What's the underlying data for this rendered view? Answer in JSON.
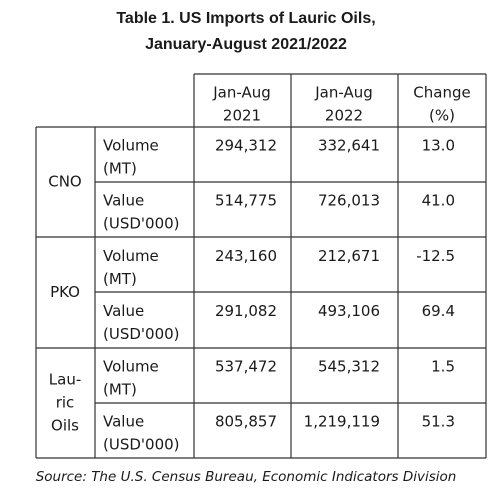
{
  "title": [
    "Table 1. US Imports of Lauric Oils,",
    "January-August 2021/2022"
  ],
  "table": {
    "header": [
      [
        "Jan-Aug",
        "2021"
      ],
      [
        "Jan-Aug",
        "2022"
      ],
      [
        "Change",
        "(%)"
      ]
    ],
    "groups": [
      {
        "name": [
          "CNO"
        ],
        "rows": [
          {
            "measure": [
              "Volume",
              "(MT)"
            ],
            "values": [
              "294,312",
              "332,641",
              "13.0"
            ]
          },
          {
            "measure": [
              "Value",
              "(USD'000)"
            ],
            "values": [
              "514,775",
              "726,013",
              "41.0"
            ]
          }
        ]
      },
      {
        "name": [
          "PKO"
        ],
        "rows": [
          {
            "measure": [
              "Volume",
              "(MT)"
            ],
            "values": [
              "243,160",
              "212,671",
              "-12.5"
            ]
          },
          {
            "measure": [
              "Value",
              "(USD'000)"
            ],
            "values": [
              "291,082",
              "493,106",
              "69.4"
            ]
          }
        ]
      },
      {
        "name": [
          "Lau-",
          "ric",
          "Oils"
        ],
        "rows": [
          {
            "measure": [
              "Volume",
              "(MT)"
            ],
            "values": [
              "537,472",
              "545,312",
              "1.5"
            ]
          },
          {
            "measure": [
              "Value",
              "(USD'000)"
            ],
            "values": [
              "805,857",
              "1,219,119",
              "51.3"
            ]
          }
        ]
      }
    ]
  },
  "source": "Source: The U.S. Census Bureau, Economic Indicators Division"
}
